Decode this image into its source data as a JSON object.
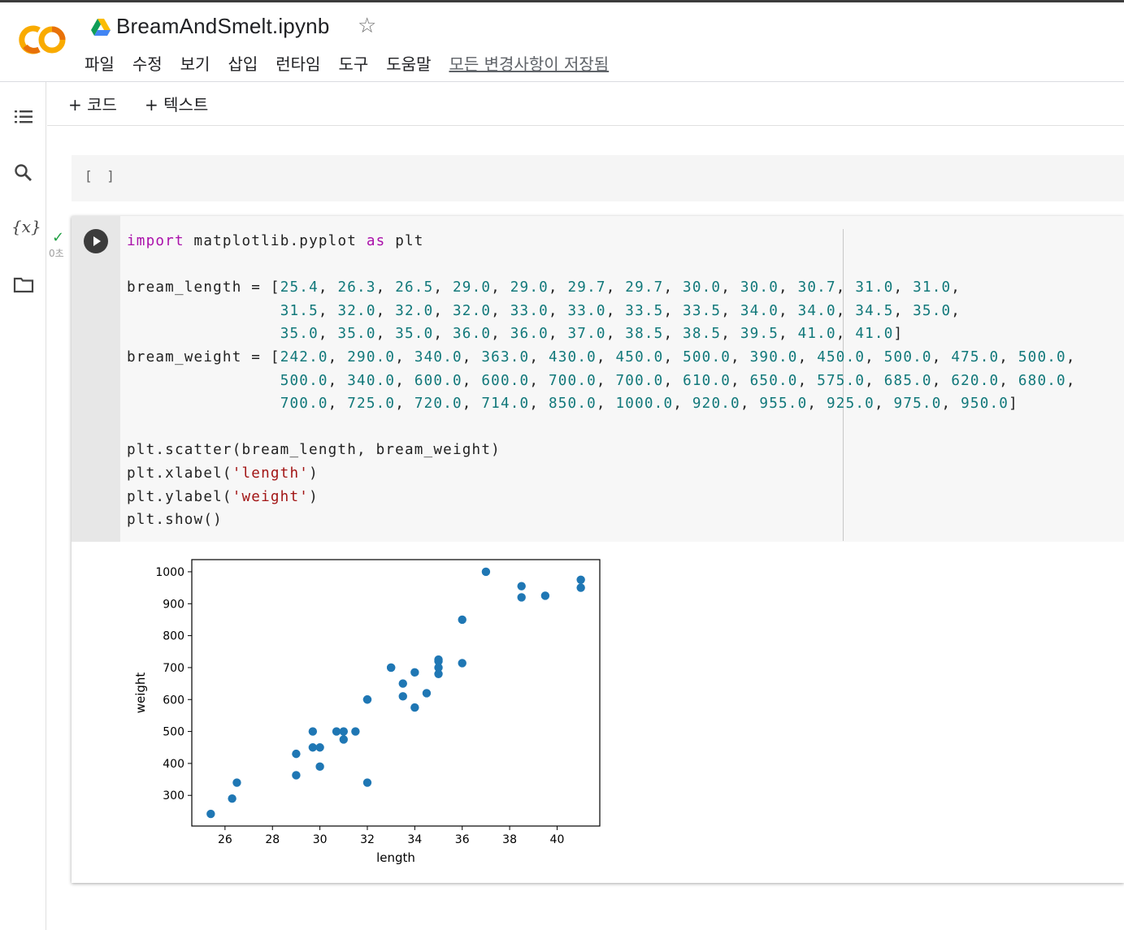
{
  "header": {
    "title": "BreamAndSmelt.ipynb",
    "menu": [
      "파일",
      "수정",
      "보기",
      "삽입",
      "런타임",
      "도구",
      "도움말"
    ],
    "saved_status": "모든 변경사항이 저장됨"
  },
  "toolbar": {
    "add_code": "+ 코드",
    "add_text": "+ 텍스트"
  },
  "empty_cell": {
    "prompt": "[ ]"
  },
  "exec": {
    "time": "0초"
  },
  "code": {
    "line1": "import matplotlib.pyplot as plt",
    "bream_length": [
      25.4,
      26.3,
      26.5,
      29.0,
      29.0,
      29.7,
      29.7,
      30.0,
      30.0,
      30.7,
      31.0,
      31.0,
      31.5,
      32.0,
      32.0,
      32.0,
      33.0,
      33.0,
      33.5,
      33.5,
      34.0,
      34.0,
      34.5,
      35.0,
      35.0,
      35.0,
      35.0,
      36.0,
      36.0,
      37.0,
      38.5,
      38.5,
      39.5,
      41.0,
      41.0
    ],
    "bream_weight": [
      242.0,
      290.0,
      340.0,
      363.0,
      430.0,
      450.0,
      500.0,
      390.0,
      450.0,
      500.0,
      475.0,
      500.0,
      500.0,
      340.0,
      600.0,
      600.0,
      700.0,
      700.0,
      610.0,
      650.0,
      575.0,
      685.0,
      620.0,
      680.0,
      700.0,
      725.0,
      720.0,
      714.0,
      850.0,
      1000.0,
      920.0,
      955.0,
      925.0,
      975.0,
      950.0
    ],
    "scatter_line": "plt.scatter(bream_length, bream_weight)",
    "xlabel_str": "'length'",
    "ylabel_str": "'weight'",
    "show_line": "plt.show()"
  },
  "chart_data": {
    "type": "scatter",
    "x": [
      25.4,
      26.3,
      26.5,
      29.0,
      29.0,
      29.7,
      29.7,
      30.0,
      30.0,
      30.7,
      31.0,
      31.0,
      31.5,
      32.0,
      32.0,
      32.0,
      33.0,
      33.0,
      33.5,
      33.5,
      34.0,
      34.0,
      34.5,
      35.0,
      35.0,
      35.0,
      35.0,
      36.0,
      36.0,
      37.0,
      38.5,
      38.5,
      39.5,
      41.0,
      41.0
    ],
    "y": [
      242.0,
      290.0,
      340.0,
      363.0,
      430.0,
      450.0,
      500.0,
      390.0,
      450.0,
      500.0,
      475.0,
      500.0,
      500.0,
      340.0,
      600.0,
      600.0,
      700.0,
      700.0,
      610.0,
      650.0,
      575.0,
      685.0,
      620.0,
      680.0,
      700.0,
      725.0,
      720.0,
      714.0,
      850.0,
      1000.0,
      920.0,
      955.0,
      925.0,
      975.0,
      950.0
    ],
    "xlabel": "length",
    "ylabel": "weight",
    "xticks": [
      26,
      28,
      30,
      32,
      34,
      36,
      38,
      40
    ],
    "yticks": [
      300,
      400,
      500,
      600,
      700,
      800,
      900,
      1000
    ],
    "xlim": [
      24.6,
      41.8
    ],
    "ylim": [
      204,
      1038
    ],
    "marker_color": "#1f77b4",
    "grid": false
  }
}
